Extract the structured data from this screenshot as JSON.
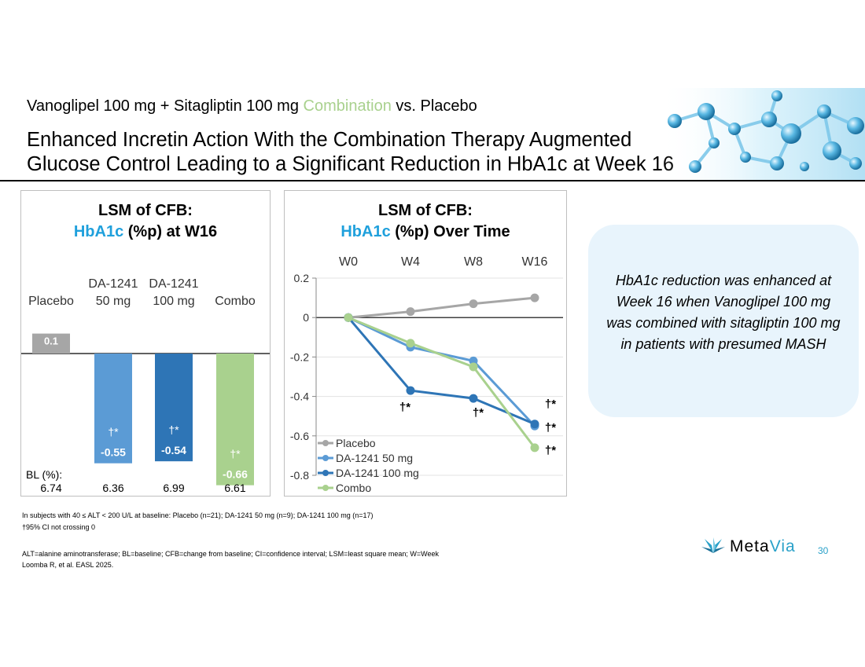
{
  "slide": {
    "subtitle_a": "Vanoglipel 100 mg + Sitagliptin 100 mg ",
    "subtitle_accent": "Combination",
    "subtitle_b": " vs. Placebo",
    "title_line1": "Enhanced Incretin Action With the Combination Therapy Augmented",
    "title_line2": "Glucose Control Leading to a Significant Reduction in HbA1c at Week 16",
    "callout": "HbA1c reduction was enhanced at Week 16 when Vanoglipel 100 mg was combined with sitagliptin 100 mg in patients with presumed MASH",
    "footnote1": "In subjects with 40 ≤ ALT < 200 U/L at baseline: Placebo (n=21); DA-1241 50 mg (n=9); DA-1241 100 mg (n=17)",
    "footnote2": "†95% CI not crossing 0",
    "footnote3": "ALT=alanine aminotransferase; BL=baseline; CFB=change from baseline; CI=confidence interval; LSM=least square mean; W=Week",
    "footnote4": "Loomba R, et al. EASL 2025.",
    "logo_a": "Meta",
    "logo_b": "Via",
    "page_number": "30",
    "colors": {
      "accent_green": "#a9d18e",
      "title_blue": "#1fa0dc",
      "callout_bg": "#e8f4fc",
      "logo_blue": "#2aa1c9"
    }
  },
  "chart_data": [
    {
      "type": "bar",
      "title_line1": "LSM of CFB:",
      "title_highlight": "HbA1c",
      "title_rest": " (%p) at W16",
      "categories": [
        {
          "line1": "",
          "line2": "Placebo"
        },
        {
          "line1": "DA-1241",
          "line2": "50 mg"
        },
        {
          "line1": "DA-1241",
          "line2": "100 mg"
        },
        {
          "line1": "",
          "line2": "Combo"
        }
      ],
      "values": [
        0.1,
        -0.55,
        -0.54,
        -0.66
      ],
      "value_labels": [
        "0.1",
        "-0.55",
        "-0.54",
        "-0.66"
      ],
      "significance": [
        "",
        "†*",
        "†*",
        "†*"
      ],
      "colors": [
        "#a6a6a6",
        "#5b9bd5",
        "#2e75b6",
        "#a9d18e"
      ],
      "baseline_label": "BL (%):",
      "baseline_values": [
        "6.74",
        "6.36",
        "6.99",
        "6.61"
      ],
      "ylim": [
        -0.8,
        0.2
      ]
    },
    {
      "type": "line",
      "title_line1": "LSM of CFB:",
      "title_highlight": "HbA1c",
      "title_rest": " (%p) Over Time",
      "x": [
        "W0",
        "W4",
        "W8",
        "W16"
      ],
      "y_ticks": [
        "0.2",
        "0",
        "-0.2",
        "-0.4",
        "-0.6",
        "-0.8"
      ],
      "ylim": [
        -0.8,
        0.2
      ],
      "series": [
        {
          "name": "Placebo",
          "color": "#a6a6a6",
          "values": [
            0,
            0.03,
            0.07,
            0.1
          ],
          "marks": [
            "",
            "",
            "",
            ""
          ]
        },
        {
          "name": "DA-1241 50 mg",
          "color": "#5b9bd5",
          "values": [
            0,
            -0.15,
            -0.22,
            -0.55
          ],
          "marks": [
            "",
            "",
            "",
            "†*"
          ]
        },
        {
          "name": "DA-1241 100 mg",
          "color": "#2e75b6",
          "values": [
            0,
            -0.37,
            -0.41,
            -0.54
          ],
          "marks": [
            "",
            "†*",
            "†*",
            "†*"
          ]
        },
        {
          "name": "Combo",
          "color": "#a9d18e",
          "values": [
            0,
            -0.13,
            -0.25,
            -0.66
          ],
          "marks": [
            "",
            "",
            "",
            "†*"
          ]
        }
      ],
      "legend_position": "bottom-left"
    }
  ]
}
